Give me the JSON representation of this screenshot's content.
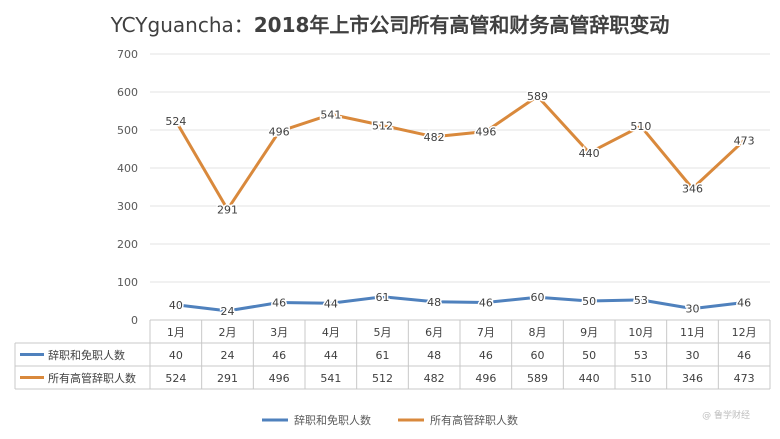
{
  "title": {
    "brand": "YCYguancha：",
    "main": "2018年上市公司所有高管和财务高管辞职变动"
  },
  "chart_data": {
    "type": "line",
    "categories": [
      "1月",
      "2月",
      "3月",
      "4月",
      "5月",
      "6月",
      "7月",
      "8月",
      "9月",
      "10月",
      "11月",
      "12月"
    ],
    "series": [
      {
        "name": "辞职和免职人数",
        "values": [
          40,
          24,
          46,
          44,
          61,
          48,
          46,
          60,
          50,
          53,
          30,
          46
        ],
        "color": "#4f81bd"
      },
      {
        "name": "所有高管辞职人数",
        "values": [
          524,
          291,
          496,
          541,
          512,
          482,
          496,
          589,
          440,
          510,
          346,
          473
        ],
        "color": "#d9893c"
      }
    ],
    "ylim": [
      0,
      700
    ],
    "yticks": [
      "0",
      "100",
      "200",
      "300",
      "400",
      "500",
      "600",
      "700"
    ],
    "grid": true,
    "legend": "bottom",
    "data_table": true
  },
  "watermark": "@ 鲁学财经"
}
